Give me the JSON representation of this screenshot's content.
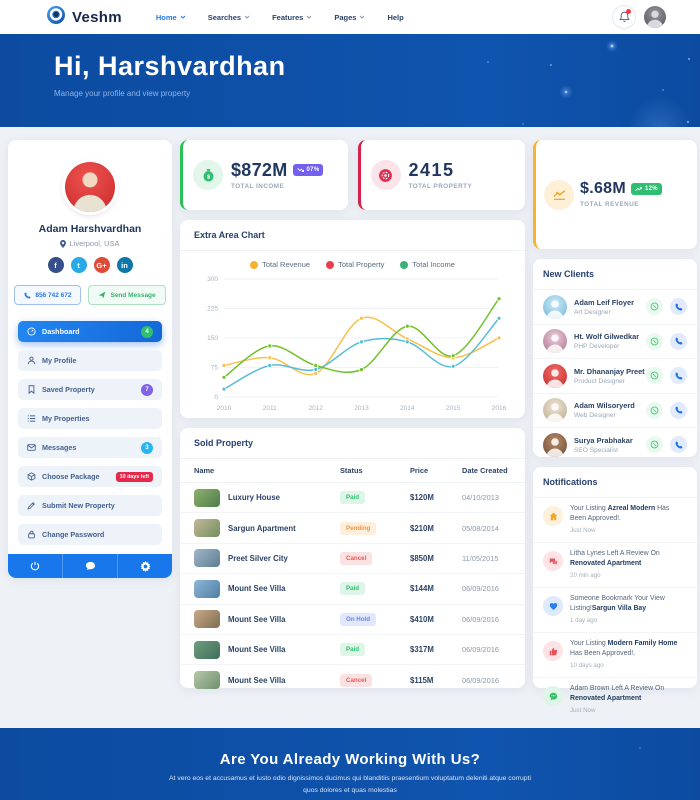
{
  "navbar": {
    "brand": "Veshm",
    "menu": [
      {
        "label": "Home",
        "active": true,
        "has_dropdown": true
      },
      {
        "label": "Searches",
        "active": false,
        "has_dropdown": true
      },
      {
        "label": "Features",
        "active": false,
        "has_dropdown": true
      },
      {
        "label": "Pages",
        "active": false,
        "has_dropdown": true
      },
      {
        "label": "Help",
        "active": false,
        "has_dropdown": false
      }
    ]
  },
  "hero": {
    "title": "Hi, Harshvardhan",
    "subtitle": "Manage your profile and view property"
  },
  "profile": {
    "name": "Adam Harshvardhan",
    "location": "Liverpool, USA",
    "phone": "856 742 672",
    "send_message": "Send Message",
    "socials": [
      {
        "name": "facebook",
        "glyph": "f"
      },
      {
        "name": "twitter",
        "glyph": "t"
      },
      {
        "name": "google-plus",
        "glyph": "G+"
      },
      {
        "name": "linkedin",
        "glyph": "in"
      }
    ]
  },
  "sidebar": {
    "items": [
      {
        "label": "Dashboard",
        "icon": "speedometer-icon",
        "badge": "4",
        "active": true
      },
      {
        "label": "My Profile",
        "icon": "user-icon"
      },
      {
        "label": "Saved Property",
        "icon": "bookmark-icon",
        "badge": "7"
      },
      {
        "label": "My Properties",
        "icon": "list-icon"
      },
      {
        "label": "Messages",
        "icon": "envelope-icon",
        "badge": "3"
      },
      {
        "label": "Choose Package",
        "icon": "package-icon",
        "badge": "10 days left"
      },
      {
        "label": "Submit New Property",
        "icon": "pencil-icon"
      },
      {
        "label": "Change Password",
        "icon": "lock-icon"
      }
    ]
  },
  "stats": [
    {
      "value": "$872M",
      "label": "TOTAL INCOME",
      "trend": "07%",
      "trend_dir": "down",
      "accent": "#2bc155"
    },
    {
      "value": "2415",
      "label": "TOTAL PROPERTY",
      "accent": "#d6214e"
    },
    {
      "value": "$.68M",
      "label": "TOTAL REVENUE",
      "trend": "12%",
      "trend_dir": "up",
      "accent": "#f7b32b"
    }
  ],
  "chart_card_title": "Extra Area Chart",
  "chart_data": {
    "type": "line",
    "title": "Extra Area Chart",
    "x": [
      2010,
      2011,
      2012,
      2013,
      2014,
      2015,
      2016
    ],
    "series": [
      {
        "name": "Total Revenue",
        "legend_color": "#f7b233",
        "line_color": "#f9c04a",
        "values": [
          80,
          100,
          60,
          200,
          148,
          100,
          150
        ]
      },
      {
        "name": "Total Property",
        "legend_color": "#e8404a",
        "line_color": "#57bdd9",
        "values": [
          20,
          80,
          70,
          140,
          140,
          78,
          200
        ]
      },
      {
        "name": "Total Income",
        "legend_color": "#3bb273",
        "line_color": "#72c02c",
        "values": [
          50,
          130,
          80,
          70,
          180,
          105,
          250
        ]
      }
    ],
    "ylim": [
      0,
      300
    ],
    "yticks": [
      0,
      75,
      150,
      225,
      300
    ],
    "grid": true,
    "legend_position": "top"
  },
  "sold_property": {
    "title": "Sold Property",
    "columns": [
      "Name",
      "Status",
      "Price",
      "Date Created"
    ],
    "rows": [
      {
        "name": "Luxury House",
        "status": "Paid",
        "status_kind": "paid",
        "price": "$120M",
        "date": "04/10/2013"
      },
      {
        "name": "Sargun Apartment",
        "status": "Pending",
        "status_kind": "pending",
        "price": "$210M",
        "date": "05/08/2014"
      },
      {
        "name": "Preet Silver City",
        "status": "Cancel",
        "status_kind": "cancel",
        "price": "$850M",
        "date": "11/05/2015"
      },
      {
        "name": "Mount See Villa",
        "status": "Paid",
        "status_kind": "paid",
        "price": "$144M",
        "date": "06/09/2016"
      },
      {
        "name": "Mount See Villa",
        "status": "On Hold",
        "status_kind": "onhold",
        "price": "$410M",
        "date": "06/09/2016"
      },
      {
        "name": "Mount See Villa",
        "status": "Paid",
        "status_kind": "paid",
        "price": "$317M",
        "date": "06/09/2016"
      },
      {
        "name": "Mount See Villa",
        "status": "Cancel",
        "status_kind": "cancel",
        "price": "$115M",
        "date": "06/09/2016"
      }
    ]
  },
  "new_clients": {
    "title": "New Clients",
    "items": [
      {
        "name": "Adam Leif Floyer",
        "role": "Art Designer"
      },
      {
        "name": "Ht. Wolf Gilwedkar",
        "role": "PHP Developer"
      },
      {
        "name": "Mr. Dhananjay Preet",
        "role": "Product Designer"
      },
      {
        "name": "Adam Wilsoryerd",
        "role": "Web Designer"
      },
      {
        "name": "Surya Prabhakar",
        "role": "SEO Specialist"
      }
    ]
  },
  "notifications": {
    "title": "Notifications",
    "items": [
      {
        "icon": "home-icon",
        "pre": "Your Listing ",
        "bold": "Azreal Modern",
        "post": " Has Been Approved!.",
        "time": "Just Now"
      },
      {
        "icon": "comments-icon",
        "pre": "Litha Lynes Left A Review On ",
        "bold": "Renovated Apartment",
        "post": "",
        "time": "20 min ago"
      },
      {
        "icon": "heart-icon",
        "pre": "Someone Bookmark Your View Listing!",
        "bold": "Sargun Villa Bay",
        "post": "",
        "time": "1 day ago"
      },
      {
        "icon": "thumbs-up-icon",
        "pre": "Your Listing ",
        "bold": "Modern Family Home",
        "post": " Has Been Approved!.",
        "time": "10 days ago"
      },
      {
        "icon": "chat-icon",
        "pre": "Adam Brown Left A Review On ",
        "bold": "Renovated Apartment",
        "post": "",
        "time": "Just Now"
      }
    ]
  },
  "footer": {
    "title": "Are You Already Working With Us?",
    "line1": "At vero eos et accusamus et iusto odio dignissimos ducimus qui blanditiis praesentium voluptatum deleniti atque corrupti",
    "line2": "quos dolores et quas molestias"
  }
}
